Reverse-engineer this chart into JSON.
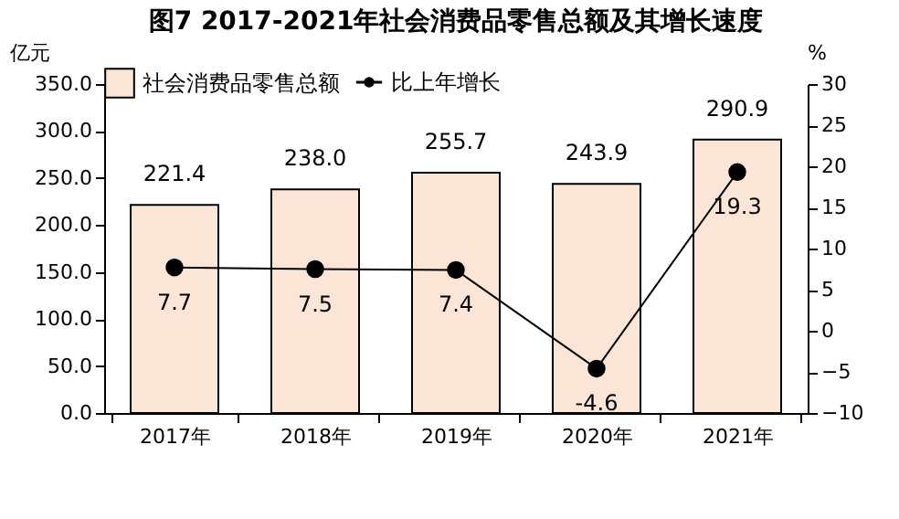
{
  "chart_data": {
    "type": "bar",
    "title": "图7 2017-2021年社会消费品零售总额及其增长速度",
    "categories": [
      "2017年",
      "2018年",
      "2019年",
      "2020年",
      "2021年"
    ],
    "series": [
      {
        "name": "社会消费品零售总额",
        "color": "#fbe5d6",
        "values": [
          221.4,
          238.0,
          255.7,
          243.9,
          290.9
        ],
        "value_labels": [
          "221.4",
          "238.0",
          "255.7",
          "243.9",
          "290.9"
        ]
      },
      {
        "name": "比上年增长",
        "type": "line",
        "axis": "y2",
        "color": "#000000",
        "values": [
          7.7,
          7.5,
          7.4,
          -4.6,
          19.3
        ],
        "value_labels": [
          "7.7",
          "7.5",
          "7.4",
          "-4.6",
          "19.3"
        ]
      }
    ],
    "ylabel": "亿元",
    "y2label": "%",
    "ylim": [
      0,
      350
    ],
    "yticks": [
      {
        "value": 0,
        "label": "0.0"
      },
      {
        "value": 50,
        "label": "50.0"
      },
      {
        "value": 100,
        "label": "100.0"
      },
      {
        "value": 150,
        "label": "150.0"
      },
      {
        "value": 200,
        "label": "200.0"
      },
      {
        "value": 250,
        "label": "250.0"
      },
      {
        "value": 300,
        "label": "300.0"
      },
      {
        "value": 350,
        "label": "350.0"
      }
    ],
    "y2lim": [
      -10,
      30
    ],
    "y2ticks": [
      -10,
      -5,
      0,
      5,
      10,
      15,
      20,
      25,
      30
    ],
    "legend": "top",
    "marker": "circle",
    "grid": false
  }
}
